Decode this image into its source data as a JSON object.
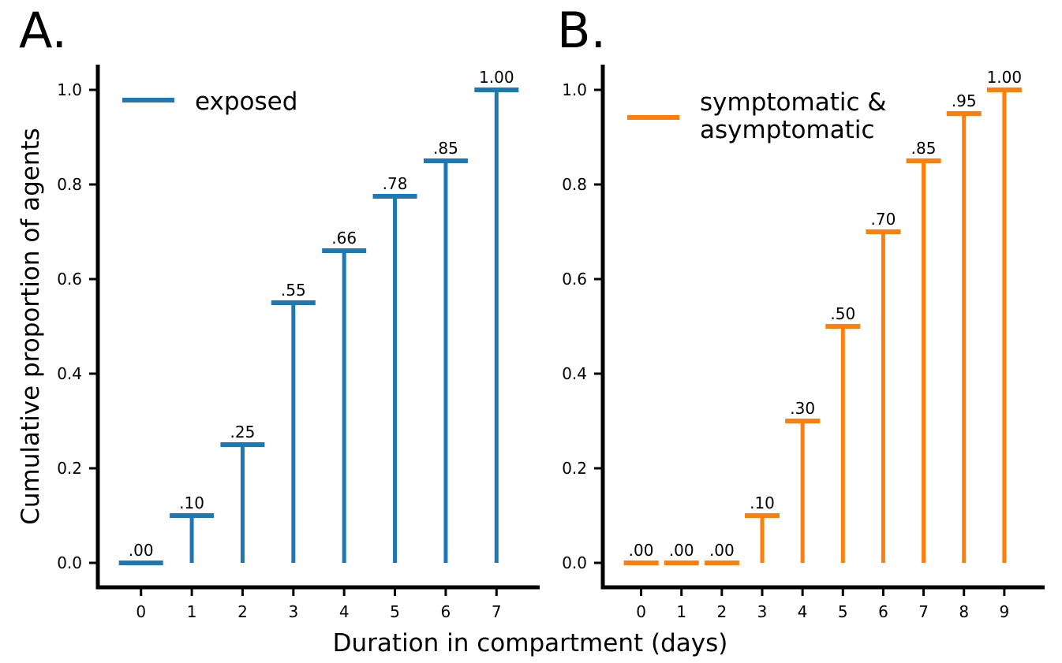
{
  "figure": {
    "xlabel": "Duration in compartment (days)",
    "ylabel": "Cumulative proportion of agents"
  },
  "chart_data": [
    {
      "type": "bar",
      "panel": "A.",
      "color": "#1f77b4",
      "legend": [
        "exposed"
      ],
      "x": [
        0,
        1,
        2,
        3,
        4,
        5,
        6,
        7
      ],
      "values": [
        0.0,
        0.1,
        0.25,
        0.55,
        0.66,
        0.775,
        0.85,
        1.0
      ],
      "labels": [
        ".00",
        ".10",
        ".25",
        ".55",
        ".66",
        ".78",
        ".85",
        "1.00"
      ],
      "xlim": [
        -0.85,
        7.85
      ],
      "ylim": [
        -0.05,
        1.05
      ],
      "yticks": [
        "0.0",
        "0.2",
        "0.4",
        "0.6",
        "0.8",
        "1.0"
      ],
      "xticks": [
        "0",
        "1",
        "2",
        "3",
        "4",
        "5",
        "6",
        "7"
      ]
    },
    {
      "type": "bar",
      "panel": "B.",
      "color": "#ff7f0e",
      "legend": [
        "symptomatic &",
        "asymptomatic"
      ],
      "x": [
        0,
        1,
        2,
        3,
        4,
        5,
        6,
        7,
        8,
        9
      ],
      "values": [
        0.0,
        0.0,
        0.0,
        0.1,
        0.3,
        0.5,
        0.7,
        0.85,
        0.95,
        1.0
      ],
      "labels": [
        ".00",
        ".00",
        ".00",
        ".10",
        ".30",
        ".50",
        ".70",
        ".85",
        ".95",
        "1.00"
      ],
      "xlim": [
        -0.95,
        10.0
      ],
      "ylim": [
        -0.05,
        1.05
      ],
      "yticks": [
        "0.0",
        "0.2",
        "0.4",
        "0.6",
        "0.8",
        "1.0"
      ],
      "xticks": [
        "0",
        "1",
        "2",
        "3",
        "4",
        "5",
        "6",
        "7",
        "8",
        "9"
      ]
    }
  ]
}
